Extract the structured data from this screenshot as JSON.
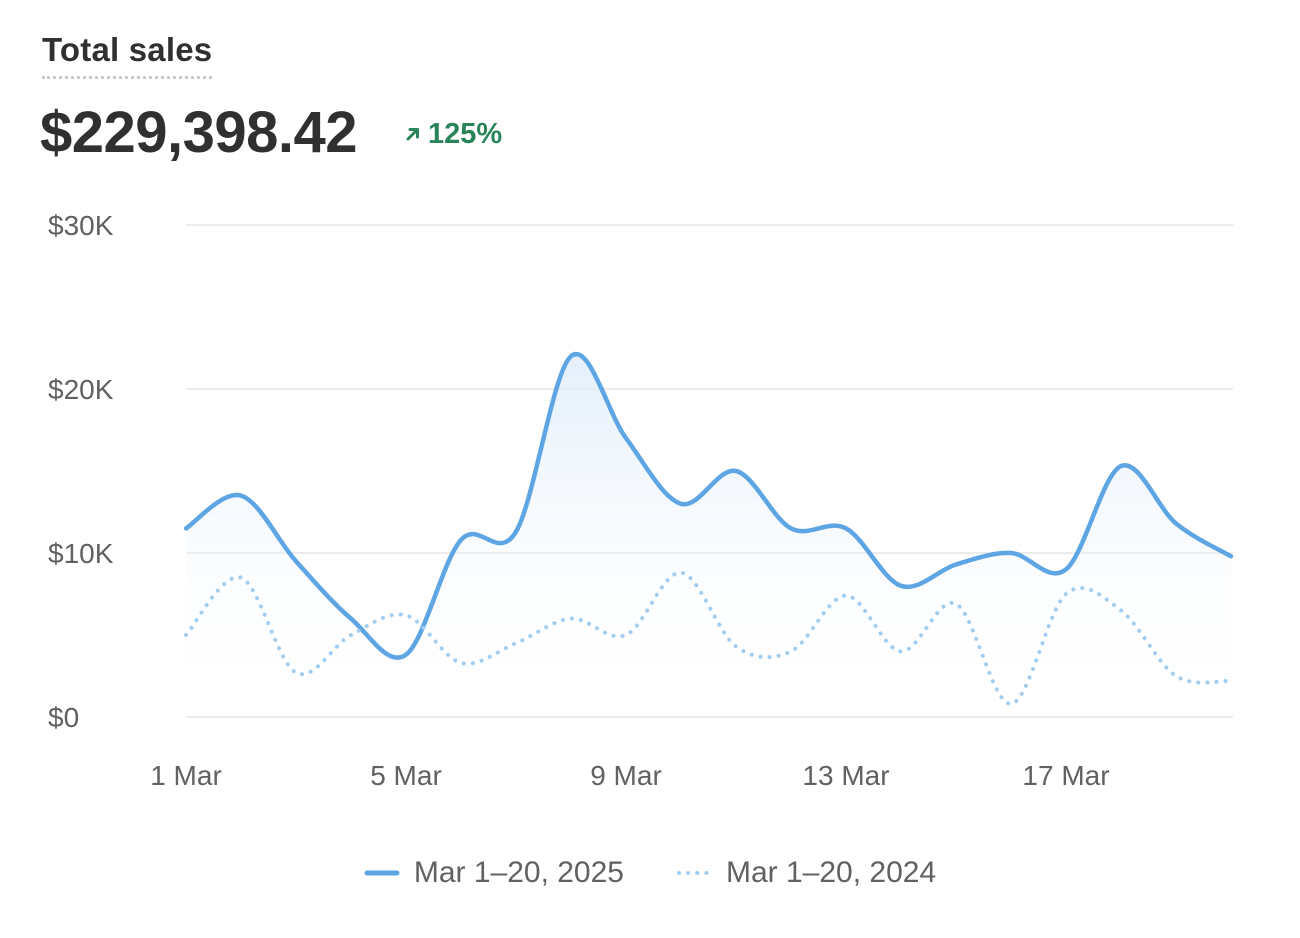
{
  "header": {
    "title": "Total sales",
    "value": "$229,398.42",
    "change": "125%",
    "change_icon": "arrow-up-right-icon",
    "change_color": "#29845a"
  },
  "chart_data": {
    "type": "line",
    "x": [
      "1 Mar",
      "2 Mar",
      "3 Mar",
      "4 Mar",
      "5 Mar",
      "6 Mar",
      "7 Mar",
      "8 Mar",
      "9 Mar",
      "10 Mar",
      "11 Mar",
      "12 Mar",
      "13 Mar",
      "14 Mar",
      "15 Mar",
      "16 Mar",
      "17 Mar",
      "18 Mar",
      "19 Mar",
      "20 Mar"
    ],
    "x_tick_labels": [
      "1 Mar",
      "5 Mar",
      "9 Mar",
      "13 Mar",
      "17 Mar"
    ],
    "y_tick_labels": [
      "$0",
      "$10K",
      "$20K",
      "$30K"
    ],
    "ylim": [
      0,
      30000
    ],
    "grid": true,
    "legend_position": "bottom-center",
    "series": [
      {
        "name": "Mar 1–20, 2025",
        "style": "solid",
        "color": "#5ea5e4",
        "values": [
          11500,
          13500,
          9500,
          6000,
          3800,
          10800,
          11300,
          22000,
          17000,
          13000,
          15000,
          11500,
          11500,
          8000,
          9300,
          10000,
          9000,
          15300,
          11800,
          9800
        ]
      },
      {
        "name": "Mar 1–20, 2024",
        "style": "dotted",
        "color": "#a3cdf0",
        "values": [
          5000,
          8500,
          2700,
          5000,
          6200,
          3300,
          4500,
          6000,
          5000,
          8800,
          4300,
          4000,
          7400,
          4000,
          6900,
          800,
          7500,
          6500,
          2500,
          2200
        ]
      }
    ]
  }
}
